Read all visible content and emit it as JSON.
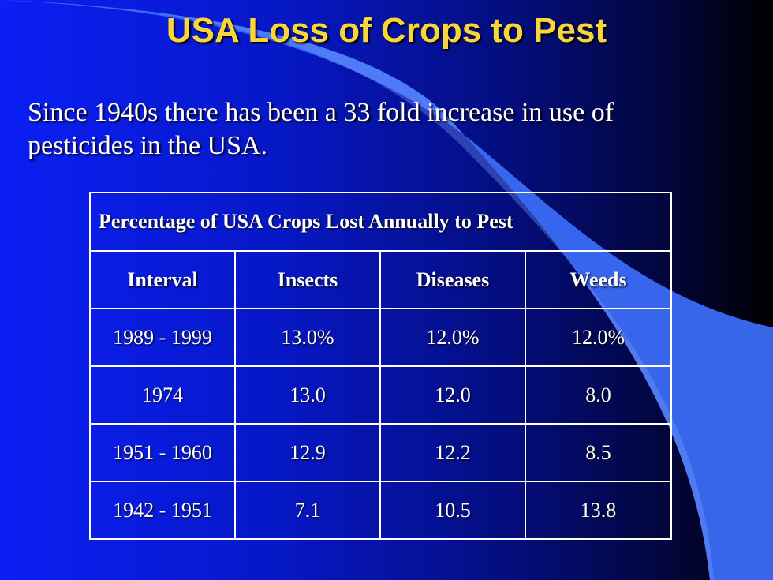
{
  "slide": {
    "title": "USA Loss of Crops to Pest",
    "subtitle_line1": "Since 1940s there has been a 33 fold increase in use of",
    "subtitle_line2": "pesticides in the USA."
  },
  "table": {
    "caption": "Percentage of USA Crops Lost Annually to Pest",
    "headers": [
      "Interval",
      "Insects",
      "Diseases",
      "Weeds"
    ],
    "rows": [
      [
        "1989 - 1999",
        "13.0%",
        "12.0%",
        "12.0%"
      ],
      [
        "1974",
        "13.0",
        "12.0",
        "8.0"
      ],
      [
        "1951 - 1960",
        "12.9",
        "12.2",
        "8.5"
      ],
      [
        "1942 - 1951",
        "7.1",
        "10.5",
        "13.8"
      ]
    ]
  },
  "colors": {
    "title": "#f8d63a",
    "background": "#0b1ff5",
    "swoosh": "#3a6cf5",
    "text": "#ffffff"
  }
}
